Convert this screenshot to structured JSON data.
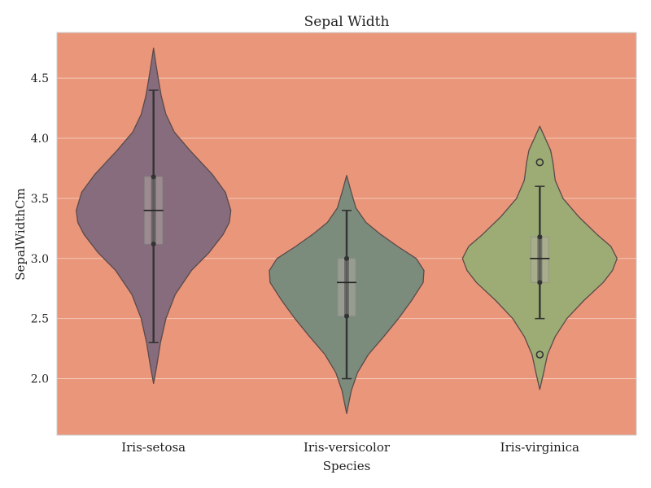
{
  "chart_data": {
    "type": "violin",
    "title": "Sepal Width",
    "xlabel": "Species",
    "ylabel": "SepalWidthCm",
    "ylim": [
      1.53,
      4.88
    ],
    "yticks": [
      2.0,
      2.5,
      3.0,
      3.5,
      4.0,
      4.5
    ],
    "ytick_labels": [
      "2.0",
      "2.5",
      "3.0",
      "3.5",
      "4.0",
      "4.5"
    ],
    "categories": [
      "Iris-setosa",
      "Iris-versicolor",
      "Iris-virginica"
    ],
    "grid": true,
    "background_color": "#E9967A",
    "series": [
      {
        "color": "#866C7C",
        "whisker_low": 2.3,
        "q1": 3.12,
        "median": 3.4,
        "q3": 3.68,
        "whisker_high": 4.4,
        "outliers": [],
        "density": [
          [
            1.96,
            0.0
          ],
          [
            2.1,
            0.04
          ],
          [
            2.3,
            0.09
          ],
          [
            2.5,
            0.16
          ],
          [
            2.7,
            0.28
          ],
          [
            2.9,
            0.49
          ],
          [
            3.05,
            0.72
          ],
          [
            3.2,
            0.9
          ],
          [
            3.3,
            0.98
          ],
          [
            3.4,
            1.0
          ],
          [
            3.55,
            0.93
          ],
          [
            3.7,
            0.76
          ],
          [
            3.9,
            0.47
          ],
          [
            4.05,
            0.27
          ],
          [
            4.2,
            0.16
          ],
          [
            4.35,
            0.1
          ],
          [
            4.5,
            0.06
          ],
          [
            4.62,
            0.03
          ],
          [
            4.75,
            0.0
          ]
        ]
      },
      {
        "color": "#7C8C7C",
        "whisker_low": 2.0,
        "q1": 2.52,
        "median": 2.8,
        "q3": 3.0,
        "whisker_high": 3.4,
        "outliers": [],
        "density": [
          [
            1.71,
            0.0
          ],
          [
            1.9,
            0.06
          ],
          [
            2.05,
            0.14
          ],
          [
            2.2,
            0.28
          ],
          [
            2.35,
            0.48
          ],
          [
            2.5,
            0.67
          ],
          [
            2.65,
            0.84
          ],
          [
            2.8,
            0.99
          ],
          [
            2.9,
            1.0
          ],
          [
            3.0,
            0.9
          ],
          [
            3.1,
            0.66
          ],
          [
            3.2,
            0.44
          ],
          [
            3.3,
            0.25
          ],
          [
            3.42,
            0.12
          ],
          [
            3.55,
            0.06
          ],
          [
            3.69,
            0.0
          ]
        ]
      },
      {
        "color": "#9CAC74",
        "whisker_low": 2.5,
        "q1": 2.8,
        "median": 3.0,
        "q3": 3.18,
        "whisker_high": 3.6,
        "outliers": [
          2.2,
          3.8
        ],
        "density": [
          [
            1.91,
            0.0
          ],
          [
            2.05,
            0.05
          ],
          [
            2.2,
            0.1
          ],
          [
            2.35,
            0.2
          ],
          [
            2.5,
            0.35
          ],
          [
            2.65,
            0.57
          ],
          [
            2.8,
            0.82
          ],
          [
            2.9,
            0.94
          ],
          [
            3.0,
            1.0
          ],
          [
            3.1,
            0.92
          ],
          [
            3.2,
            0.74
          ],
          [
            3.35,
            0.5
          ],
          [
            3.5,
            0.3
          ],
          [
            3.65,
            0.2
          ],
          [
            3.8,
            0.17
          ],
          [
            3.9,
            0.14
          ],
          [
            4.0,
            0.07
          ],
          [
            4.1,
            0.0
          ]
        ]
      }
    ]
  }
}
